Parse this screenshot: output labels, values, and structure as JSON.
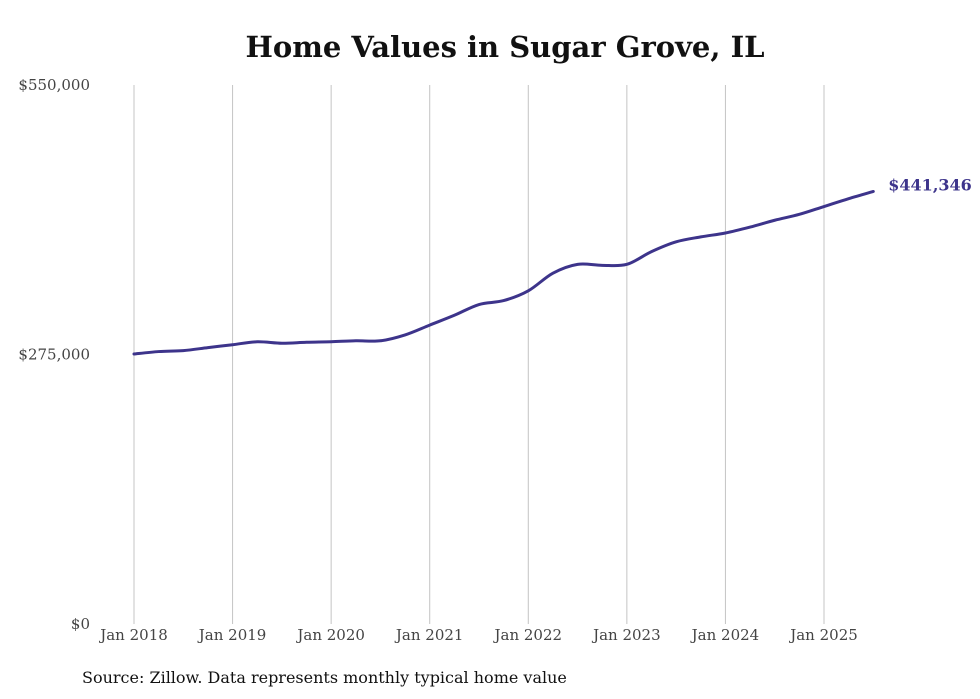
{
  "chart_data": {
    "type": "line",
    "title": "Home Values in Sugar Grove, IL",
    "xlabel": "",
    "ylabel": "",
    "ylim": [
      0,
      550000
    ],
    "y_ticks": [
      {
        "value": 0,
        "label": "$0"
      },
      {
        "value": 275000,
        "label": "$275,000"
      },
      {
        "value": 550000,
        "label": "$550,000"
      }
    ],
    "x_ticks": [
      "Jan 2018",
      "Jan 2019",
      "Jan 2020",
      "Jan 2021",
      "Jan 2022",
      "Jan 2023",
      "Jan 2024",
      "Jan 2025"
    ],
    "grid": "vertical",
    "color": "#3d348b",
    "x": [
      "2018-01",
      "2018-04",
      "2018-07",
      "2018-10",
      "2019-01",
      "2019-04",
      "2019-07",
      "2019-10",
      "2020-01",
      "2020-04",
      "2020-07",
      "2020-10",
      "2021-01",
      "2021-04",
      "2021-07",
      "2021-10",
      "2022-01",
      "2022-04",
      "2022-07",
      "2022-10",
      "2023-01",
      "2023-04",
      "2023-07",
      "2023-10",
      "2024-01",
      "2024-04",
      "2024-07",
      "2024-10",
      "2025-01",
      "2025-04",
      "2025-07"
    ],
    "values": [
      275500,
      278000,
      279000,
      282000,
      285000,
      288000,
      286500,
      287500,
      288000,
      289000,
      289000,
      295000,
      305000,
      315000,
      326000,
      330000,
      340000,
      358000,
      367000,
      366000,
      367000,
      380000,
      390000,
      395000,
      399000,
      405000,
      412000,
      418000,
      426000,
      434000,
      441346
    ],
    "end_label": "$441,346"
  },
  "source_text": "Source: Zillow. Data represents monthly typical home value"
}
